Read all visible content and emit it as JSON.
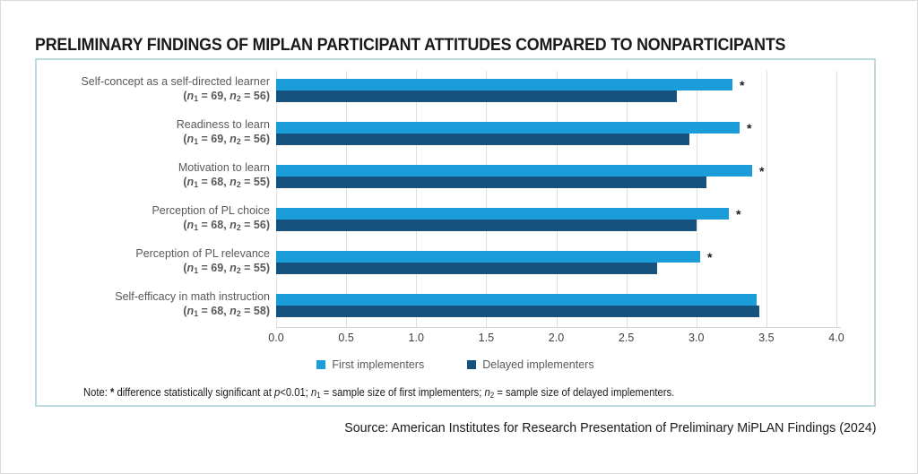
{
  "page": {
    "source": "Source: American Institutes for Research Presentation of Preliminary MiPLAN Findings (2024)"
  },
  "chart_data": {
    "type": "bar",
    "orientation": "horizontal-grouped",
    "title": "PRELIMINARY FINDINGS OF MIPLAN PARTICIPANT ATTITUDES COMPARED TO NONPARTICIPANTS",
    "categories": [
      {
        "label": "Self-concept as a self-directed learner",
        "n1": 69,
        "n2": 56,
        "significant": true
      },
      {
        "label": "Readiness to learn",
        "n1": 69,
        "n2": 56,
        "significant": true
      },
      {
        "label": "Motivation to learn",
        "n1": 68,
        "n2": 55,
        "significant": true
      },
      {
        "label": "Perception of PL choice",
        "n1": 68,
        "n2": 56,
        "significant": true
      },
      {
        "label": "Perception of PL relevance",
        "n1": 69,
        "n2": 55,
        "significant": true
      },
      {
        "label": "Self-efficacy in math instruction",
        "n1": 68,
        "n2": 58,
        "significant": false
      }
    ],
    "series": [
      {
        "name": "First implementers",
        "color": "#1B9DD9",
        "values": [
          3.26,
          3.31,
          3.4,
          3.23,
          3.03,
          3.43
        ]
      },
      {
        "name": "Delayed implementers",
        "color": "#15537E",
        "values": [
          2.86,
          2.95,
          3.07,
          3.0,
          2.72,
          3.45
        ]
      }
    ],
    "xlim": [
      0,
      4
    ],
    "xticks": [
      "0.0",
      "0.5",
      "1.0",
      "1.5",
      "2.0",
      "2.5",
      "3.0",
      "3.5",
      "4.0"
    ],
    "grid": true,
    "legend_position": "bottom",
    "sig_marker": "*",
    "note_segments": [
      {
        "t": "Note: "
      },
      {
        "t": "*",
        "b": true
      },
      {
        "t": " difference statistically significant at "
      },
      {
        "t": "p",
        "i": true
      },
      {
        "t": "<0.01; "
      },
      {
        "t": "n",
        "i": true
      },
      {
        "t": "1",
        "sub": true
      },
      {
        "t": " = sample size of first implementers; "
      },
      {
        "t": "n",
        "i": true
      },
      {
        "t": "2",
        "sub": true
      },
      {
        "t": " = sample size of delayed implementers."
      }
    ]
  }
}
